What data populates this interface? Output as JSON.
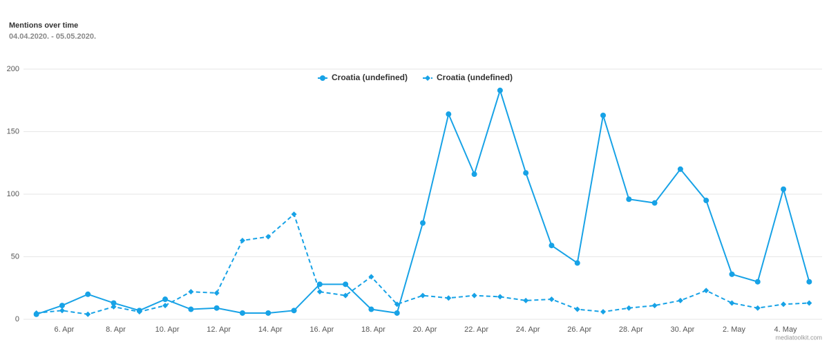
{
  "chart_data": {
    "type": "line",
    "title": "Mentions over time",
    "subtitle": "04.04.2020. - 05.05.2020.",
    "credit": "mediatoolkit.com",
    "categories": [
      null,
      "6. Apr",
      null,
      "8. Apr",
      null,
      "10. Apr",
      null,
      "12. Apr",
      null,
      "14. Apr",
      null,
      "16. Apr",
      null,
      "18. Apr",
      null,
      "20. Apr",
      null,
      "22. Apr",
      null,
      "24. Apr",
      null,
      "26. Apr",
      null,
      "28. Apr",
      null,
      "30. Apr",
      null,
      "2. May",
      null,
      "4. May",
      null
    ],
    "series": [
      {
        "name": "Croatia (undefined)",
        "color": "#17a2e6",
        "dashed": false,
        "marker": "circle",
        "values": [
          4,
          11,
          20,
          13,
          7,
          16,
          8,
          9,
          5,
          5,
          7,
          28,
          28,
          8,
          5,
          77,
          164,
          116,
          183,
          117,
          59,
          45,
          163,
          96,
          93,
          120,
          95,
          36,
          30,
          104,
          30
        ]
      },
      {
        "name": "Croatia (undefined)",
        "color": "#17a2e6",
        "dashed": true,
        "marker": "diamond",
        "values": [
          5,
          7,
          4,
          10,
          6,
          11,
          22,
          21,
          63,
          66,
          84,
          22,
          19,
          34,
          12,
          19,
          17,
          19,
          18,
          15,
          16,
          8,
          6,
          9,
          11,
          15,
          23,
          13,
          9,
          12,
          13
        ]
      }
    ],
    "ylim": [
      0,
      200
    ],
    "yticks": [
      0,
      50,
      100,
      150,
      200
    ],
    "grid": true,
    "legend": "top"
  }
}
